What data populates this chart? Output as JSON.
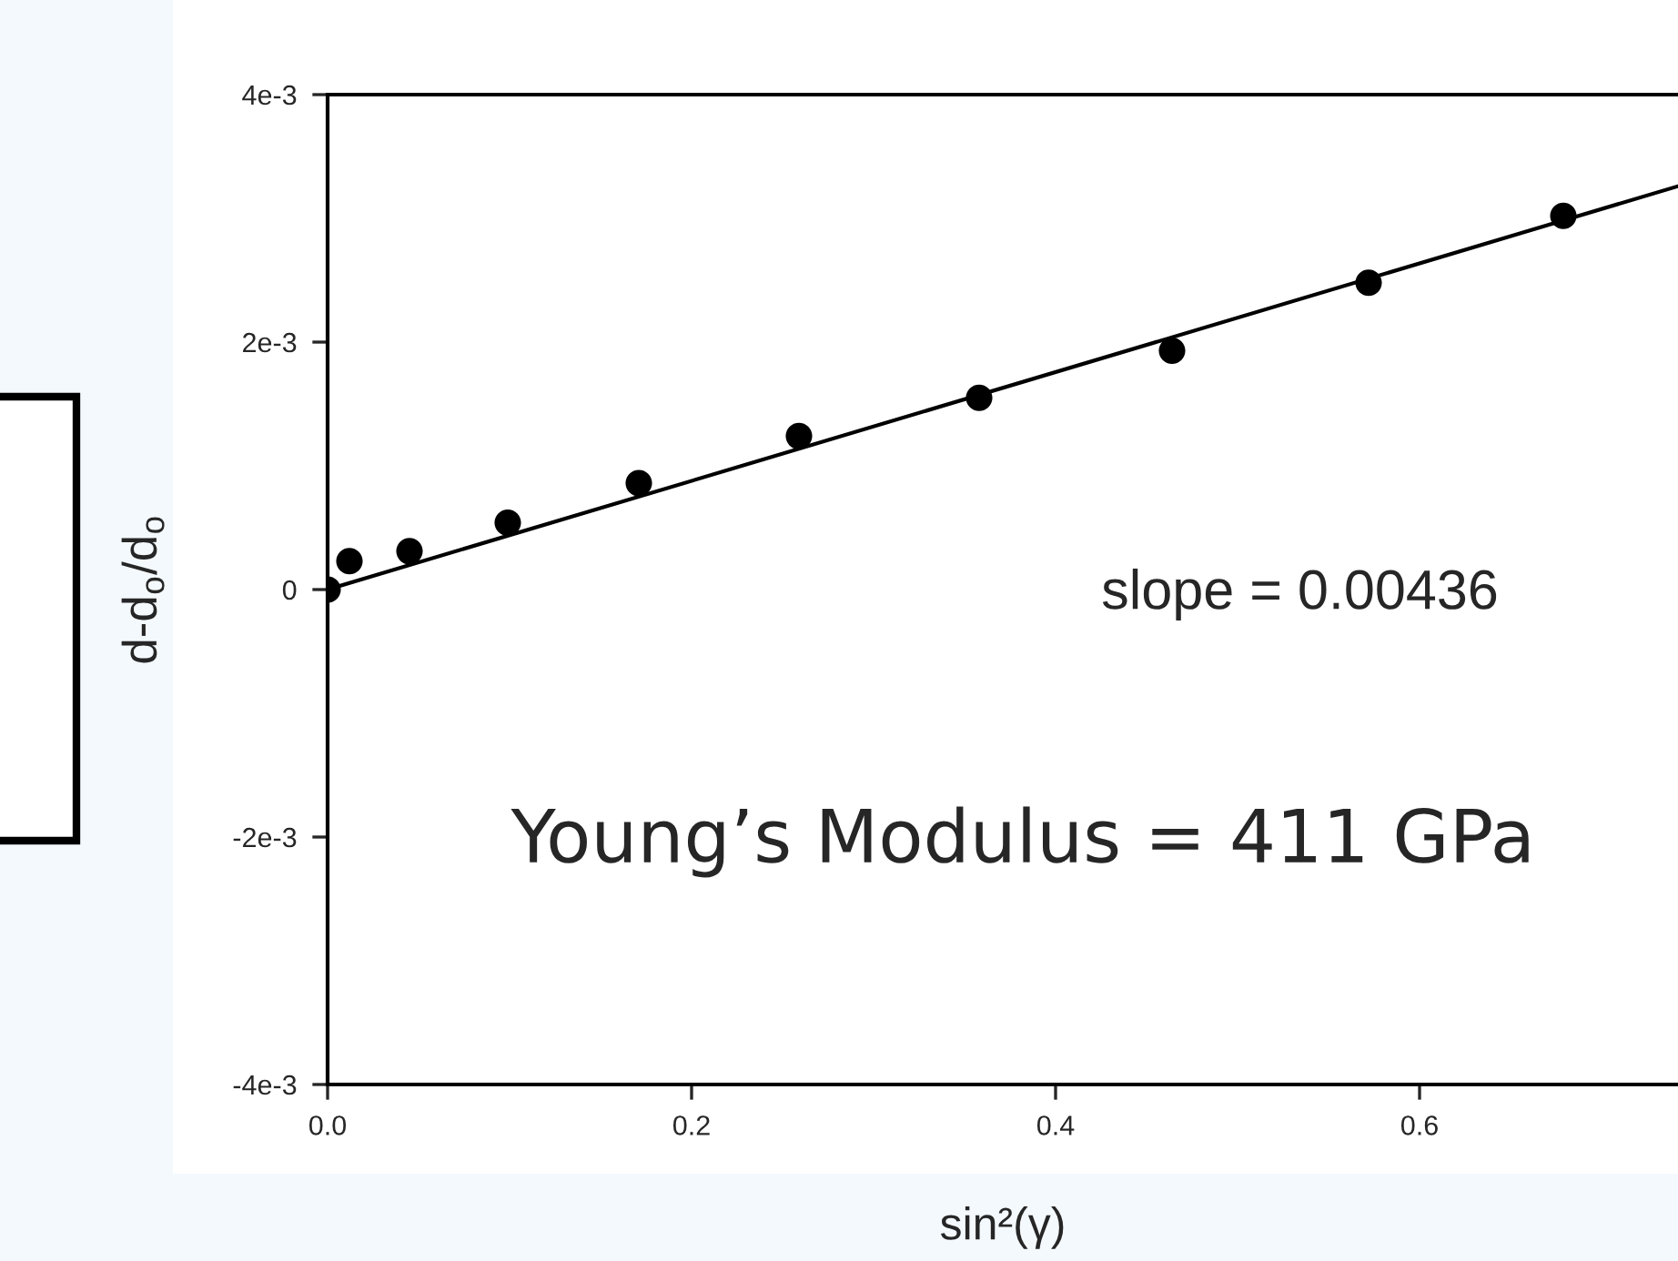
{
  "chart_data": {
    "type": "scatter",
    "xlabel": "sin²(γ)",
    "ylabel": "d-d$_{o}$/d$_{o}$",
    "series": [
      {
        "color": "#000000",
        "marker": "circle",
        "x": [
          0,
          0.012,
          0.045,
          0.099,
          0.171,
          0.259,
          0.358,
          0.464,
          0.572,
          0.679
        ],
        "values": [
          0,
          0.00023,
          0.00031,
          0.00054,
          0.00086,
          0.00124,
          0.00155,
          0.00193,
          0.00248,
          0.00302
        ]
      },
      {
        "type": "line",
        "color": "#000000",
        "line_style": "solid",
        "x": [
          0,
          0.742
        ],
        "values": [
          0,
          0.00326
        ]
      }
    ],
    "xlim": [
      0,
      0.742
    ],
    "ylim": [
      -0.004,
      0.004
    ],
    "xticks": [
      {
        "value": 0,
        "label": "0.0"
      },
      0.2,
      0.4,
      0.6
    ],
    "yticks": [
      {
        "value": -0.004,
        "label": "-4e-3"
      },
      {
        "value": -0.002,
        "label": "-2e-3"
      },
      0,
      {
        "value": 0.002,
        "label": "2e-3"
      },
      {
        "value": 0.004,
        "label": "4e-3"
      }
    ],
    "grid": false,
    "legend": false,
    "annotations": [
      "slope = 0.00436",
      "Young’s Modulus = 411 GPa"
    ]
  }
}
